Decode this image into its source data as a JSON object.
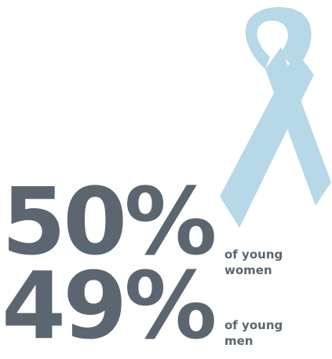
{
  "colors": {
    "text": "#5b6670",
    "ribbon": "#b7d8e6"
  },
  "ribbon": {
    "icon": "awareness-ribbon-icon"
  },
  "stats": [
    {
      "value": "50%",
      "caption_line1": "of young",
      "caption_line2": "women"
    },
    {
      "value": "49%",
      "caption_line1": "of young",
      "caption_line2": "men"
    }
  ]
}
